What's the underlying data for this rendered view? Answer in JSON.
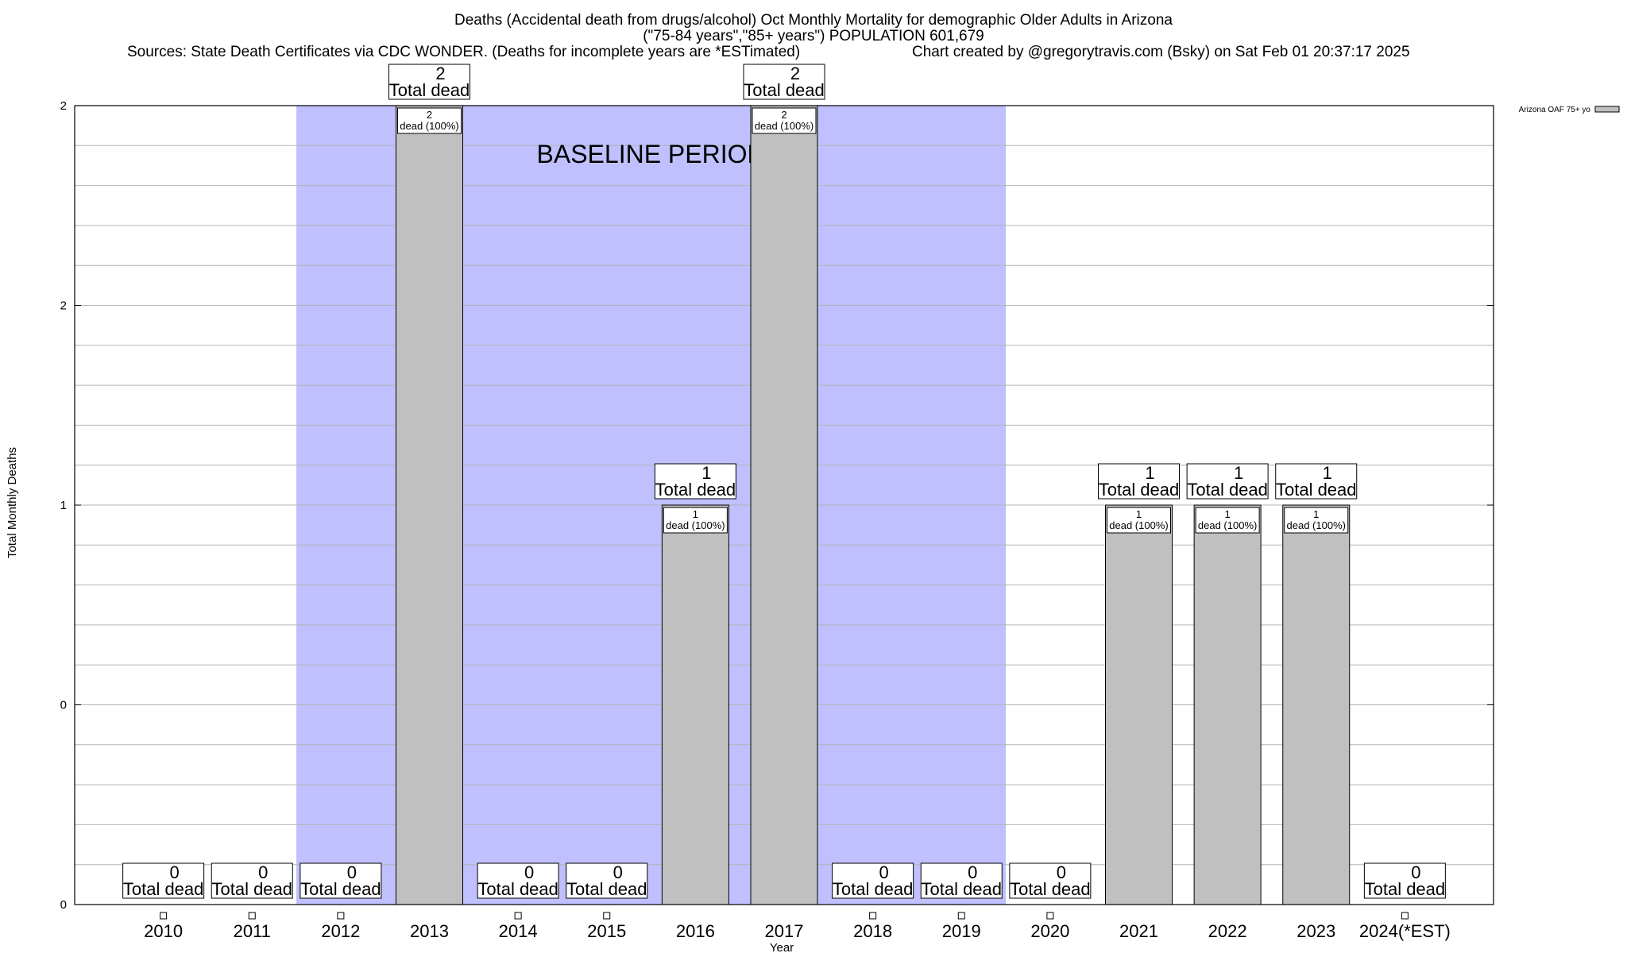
{
  "chart_data": {
    "type": "bar",
    "title_lines": [
      "Deaths (Accidental death from drugs/alcohol) Oct Monthly Mortality for demographic Older Adults in Arizona",
      "(\"75-84 years\",\"85+ years\") POPULATION 601,679"
    ],
    "subtitle_left": "Sources: State Death Certificates via CDC WONDER. (Deaths for incomplete years are *ESTimated)",
    "subtitle_right": "Chart created by @gregorytravis.com (Bsky) on Sat Feb 01 20:37:17 2025",
    "xlabel": "Year",
    "ylabel": "Total Monthly Deaths",
    "categories": [
      "2010",
      "2011",
      "2012",
      "2013",
      "2014",
      "2015",
      "2016",
      "2017",
      "2018",
      "2019",
      "2020",
      "2021",
      "2022",
      "2023",
      "2024(*EST)"
    ],
    "series": [
      {
        "name": "Arizona OAF 75+ yo",
        "values": [
          0,
          0,
          0,
          2,
          0,
          0,
          1,
          2,
          0,
          0,
          0,
          1,
          1,
          1,
          0
        ],
        "color": "#c0c0c0"
      }
    ],
    "ylim": [
      0,
      2
    ],
    "yticks": [
      {
        "value": 0,
        "label": "0"
      },
      {
        "value": 0.5,
        "label": "0"
      },
      {
        "value": 1,
        "label": "1"
      },
      {
        "value": 1.5,
        "label": "2"
      },
      {
        "value": 2,
        "label": "2"
      }
    ],
    "total_label_suffix": "Total dead",
    "bar_label_suffix": "dead (100%)",
    "baseline": {
      "label": "BASELINE PERIOD",
      "from": "2012",
      "to": "2019",
      "color": "#c0c0ff"
    },
    "grid": true,
    "legend_position": "top-right"
  }
}
